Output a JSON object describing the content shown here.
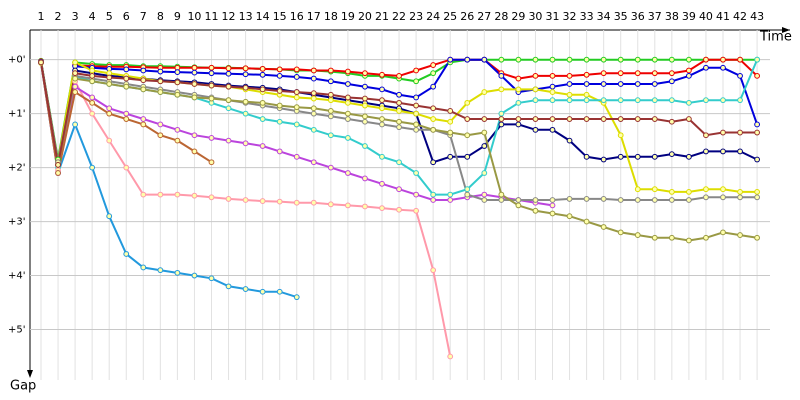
{
  "chart_data": {
    "type": "line",
    "x_label": "Time",
    "y_label": "Gap",
    "categories": [
      "1",
      "2",
      "3",
      "4",
      "5",
      "6",
      "7",
      "8",
      "9",
      "10",
      "11",
      "12",
      "13",
      "14",
      "15",
      "16",
      "17",
      "18",
      "19",
      "20",
      "21",
      "22",
      "23",
      "24",
      "25",
      "26",
      "27",
      "28",
      "29",
      "30",
      "31",
      "32",
      "33",
      "34",
      "35",
      "36",
      "37",
      "38",
      "39",
      "40",
      "41",
      "42",
      "43"
    ],
    "ylim": [
      -0.55,
      5.75
    ],
    "yticks": [
      {
        "value": 0,
        "label": "+0'"
      },
      {
        "value": 1,
        "label": "+1'"
      },
      {
        "value": 2,
        "label": "+2'"
      },
      {
        "value": 3,
        "label": "+3'"
      },
      {
        "value": 4,
        "label": "+4'"
      },
      {
        "value": 5,
        "label": "+5'"
      }
    ],
    "inverted_y": true,
    "grid": true,
    "series": [
      {
        "color": "#22cc22",
        "values": [
          0.02,
          1.85,
          0.05,
          0.08,
          0.1,
          0.1,
          0.12,
          0.12,
          0.13,
          0.14,
          0.15,
          0.15,
          0.16,
          0.17,
          0.18,
          0.2,
          0.2,
          0.22,
          0.25,
          0.3,
          0.3,
          0.35,
          0.4,
          0.25,
          0.05,
          0.0,
          0.0,
          0.0,
          0.0,
          0.0,
          0.0,
          0.0,
          0.0,
          0.0,
          0.0,
          0.0,
          0.0,
          0.0,
          0.0,
          0.0,
          0.0,
          0.0,
          0.0
        ]
      },
      {
        "color": "#ee0000",
        "values": [
          0.03,
          1.9,
          0.1,
          0.12,
          0.13,
          0.13,
          0.14,
          0.15,
          0.15,
          0.15,
          0.15,
          0.16,
          0.16,
          0.17,
          0.18,
          0.18,
          0.2,
          0.2,
          0.22,
          0.25,
          0.28,
          0.3,
          0.2,
          0.1,
          0.0,
          0.0,
          0.0,
          0.25,
          0.35,
          0.3,
          0.3,
          0.3,
          0.28,
          0.25,
          0.25,
          0.25,
          0.25,
          0.25,
          0.2,
          0.0,
          0.0,
          0.0,
          0.3
        ]
      },
      {
        "color": "#0000dd",
        "values": [
          0.04,
          1.9,
          0.12,
          0.15,
          0.17,
          0.18,
          0.2,
          0.22,
          0.23,
          0.24,
          0.25,
          0.26,
          0.27,
          0.28,
          0.3,
          0.32,
          0.35,
          0.4,
          0.45,
          0.5,
          0.55,
          0.65,
          0.7,
          0.5,
          0.0,
          0.0,
          0.0,
          0.3,
          0.6,
          0.55,
          0.5,
          0.45,
          0.45,
          0.45,
          0.45,
          0.45,
          0.45,
          0.4,
          0.3,
          0.15,
          0.15,
          0.3,
          1.2
        ]
      },
      {
        "color": "#000080",
        "values": [
          0.05,
          1.95,
          0.2,
          0.25,
          0.3,
          0.32,
          0.35,
          0.38,
          0.4,
          0.42,
          0.45,
          0.48,
          0.5,
          0.52,
          0.55,
          0.6,
          0.65,
          0.7,
          0.75,
          0.8,
          0.85,
          0.9,
          1.0,
          1.9,
          1.8,
          1.8,
          1.6,
          1.2,
          1.2,
          1.3,
          1.3,
          1.5,
          1.8,
          1.85,
          1.8,
          1.8,
          1.8,
          1.75,
          1.8,
          1.7,
          1.7,
          1.7,
          1.85
        ]
      },
      {
        "color": "#dddd00",
        "values": [
          0.06,
          1.9,
          0.05,
          0.2,
          0.25,
          0.3,
          0.35,
          0.4,
          0.42,
          0.45,
          0.48,
          0.5,
          0.55,
          0.6,
          0.65,
          0.7,
          0.72,
          0.75,
          0.8,
          0.85,
          0.9,
          0.95,
          1.0,
          1.1,
          1.15,
          0.8,
          0.6,
          0.55,
          0.55,
          0.55,
          0.6,
          0.65,
          0.65,
          0.8,
          1.4,
          2.4,
          2.4,
          2.45,
          2.45,
          2.4,
          2.4,
          2.45,
          2.45
        ]
      },
      {
        "color": "#33cccc",
        "values": [
          0.05,
          2.0,
          0.3,
          0.4,
          0.45,
          0.5,
          0.55,
          0.6,
          0.65,
          0.7,
          0.8,
          0.9,
          1.0,
          1.1,
          1.15,
          1.2,
          1.3,
          1.4,
          1.45,
          1.6,
          1.8,
          1.9,
          2.1,
          2.5,
          2.5,
          2.4,
          2.1,
          1.0,
          0.8,
          0.75,
          0.75,
          0.75,
          0.75,
          0.75,
          0.75,
          0.75,
          0.75,
          0.75,
          0.8,
          0.75,
          0.75,
          0.75,
          0.0
        ]
      },
      {
        "color": "#ff99aa",
        "values": [
          0.05,
          2.05,
          0.4,
          1.0,
          1.5,
          2.0,
          2.5,
          2.5,
          2.5,
          2.52,
          2.55,
          2.58,
          2.6,
          2.62,
          2.63,
          2.65,
          2.65,
          2.68,
          2.7,
          2.72,
          2.75,
          2.78,
          2.8,
          3.9,
          5.5,
          null,
          null,
          null,
          null,
          null,
          null,
          null,
          null,
          null,
          null,
          null,
          null,
          null,
          null,
          null,
          null,
          null,
          null
        ]
      },
      {
        "color": "#2299dd",
        "values": [
          0.05,
          2.1,
          1.2,
          2.0,
          2.9,
          3.6,
          3.85,
          3.9,
          3.95,
          4.0,
          4.05,
          4.2,
          4.25,
          4.3,
          4.3,
          4.4,
          null,
          null,
          null,
          null,
          null,
          null,
          null,
          null,
          null,
          null,
          null,
          null,
          null,
          null,
          null,
          null,
          null,
          null,
          null,
          null,
          null,
          null,
          null,
          null,
          null,
          null,
          null
        ]
      },
      {
        "color": "#bb44dd",
        "values": [
          0.05,
          2.1,
          0.5,
          0.7,
          0.9,
          1.0,
          1.1,
          1.2,
          1.3,
          1.4,
          1.45,
          1.5,
          1.55,
          1.6,
          1.7,
          1.8,
          1.9,
          2.0,
          2.1,
          2.2,
          2.3,
          2.4,
          2.5,
          2.6,
          2.6,
          2.55,
          2.5,
          2.55,
          2.6,
          2.65,
          2.7,
          null,
          null,
          null,
          null,
          null,
          null,
          null,
          null,
          null,
          null,
          null,
          null
        ]
      },
      {
        "color": "#bb6633",
        "values": [
          0.05,
          2.1,
          0.6,
          0.8,
          1.0,
          1.1,
          1.2,
          1.4,
          1.5,
          1.7,
          1.9,
          null,
          null,
          null,
          null,
          null,
          null,
          null,
          null,
          null,
          null,
          null,
          null,
          null,
          null,
          null,
          null,
          null,
          null,
          null,
          null,
          null,
          null,
          null,
          null,
          null,
          null,
          null,
          null,
          null,
          null,
          null,
          null
        ]
      },
      {
        "color": "#888888",
        "values": [
          0.05,
          1.9,
          0.3,
          0.35,
          0.4,
          0.45,
          0.5,
          0.55,
          0.6,
          0.65,
          0.7,
          0.75,
          0.8,
          0.85,
          0.9,
          0.95,
          1.0,
          1.05,
          1.1,
          1.15,
          1.2,
          1.25,
          1.3,
          1.3,
          1.4,
          2.5,
          2.6,
          2.6,
          2.6,
          2.6,
          2.6,
          2.58,
          2.58,
          2.58,
          2.6,
          2.6,
          2.6,
          2.6,
          2.6,
          2.55,
          2.55,
          2.55,
          2.55
        ]
      },
      {
        "color": "#999944",
        "values": [
          0.05,
          1.95,
          0.35,
          0.4,
          0.45,
          0.5,
          0.55,
          0.6,
          0.65,
          0.7,
          0.72,
          0.75,
          0.78,
          0.8,
          0.85,
          0.88,
          0.9,
          0.95,
          1.0,
          1.05,
          1.1,
          1.15,
          1.2,
          1.3,
          1.35,
          1.4,
          1.35,
          2.5,
          2.7,
          2.8,
          2.85,
          2.9,
          3.0,
          3.1,
          3.2,
          3.25,
          3.3,
          3.3,
          3.35,
          3.3,
          3.2,
          3.25,
          3.3
        ]
      },
      {
        "color": "#993333",
        "values": [
          0.05,
          1.95,
          0.25,
          0.3,
          0.33,
          0.35,
          0.38,
          0.4,
          0.42,
          0.45,
          0.48,
          0.5,
          0.52,
          0.55,
          0.58,
          0.6,
          0.62,
          0.65,
          0.7,
          0.72,
          0.75,
          0.8,
          0.85,
          0.9,
          0.95,
          1.1,
          1.1,
          1.1,
          1.1,
          1.1,
          1.1,
          1.1,
          1.1,
          1.1,
          1.1,
          1.1,
          1.1,
          1.15,
          1.1,
          1.4,
          1.35,
          1.35,
          1.35
        ]
      }
    ]
  }
}
